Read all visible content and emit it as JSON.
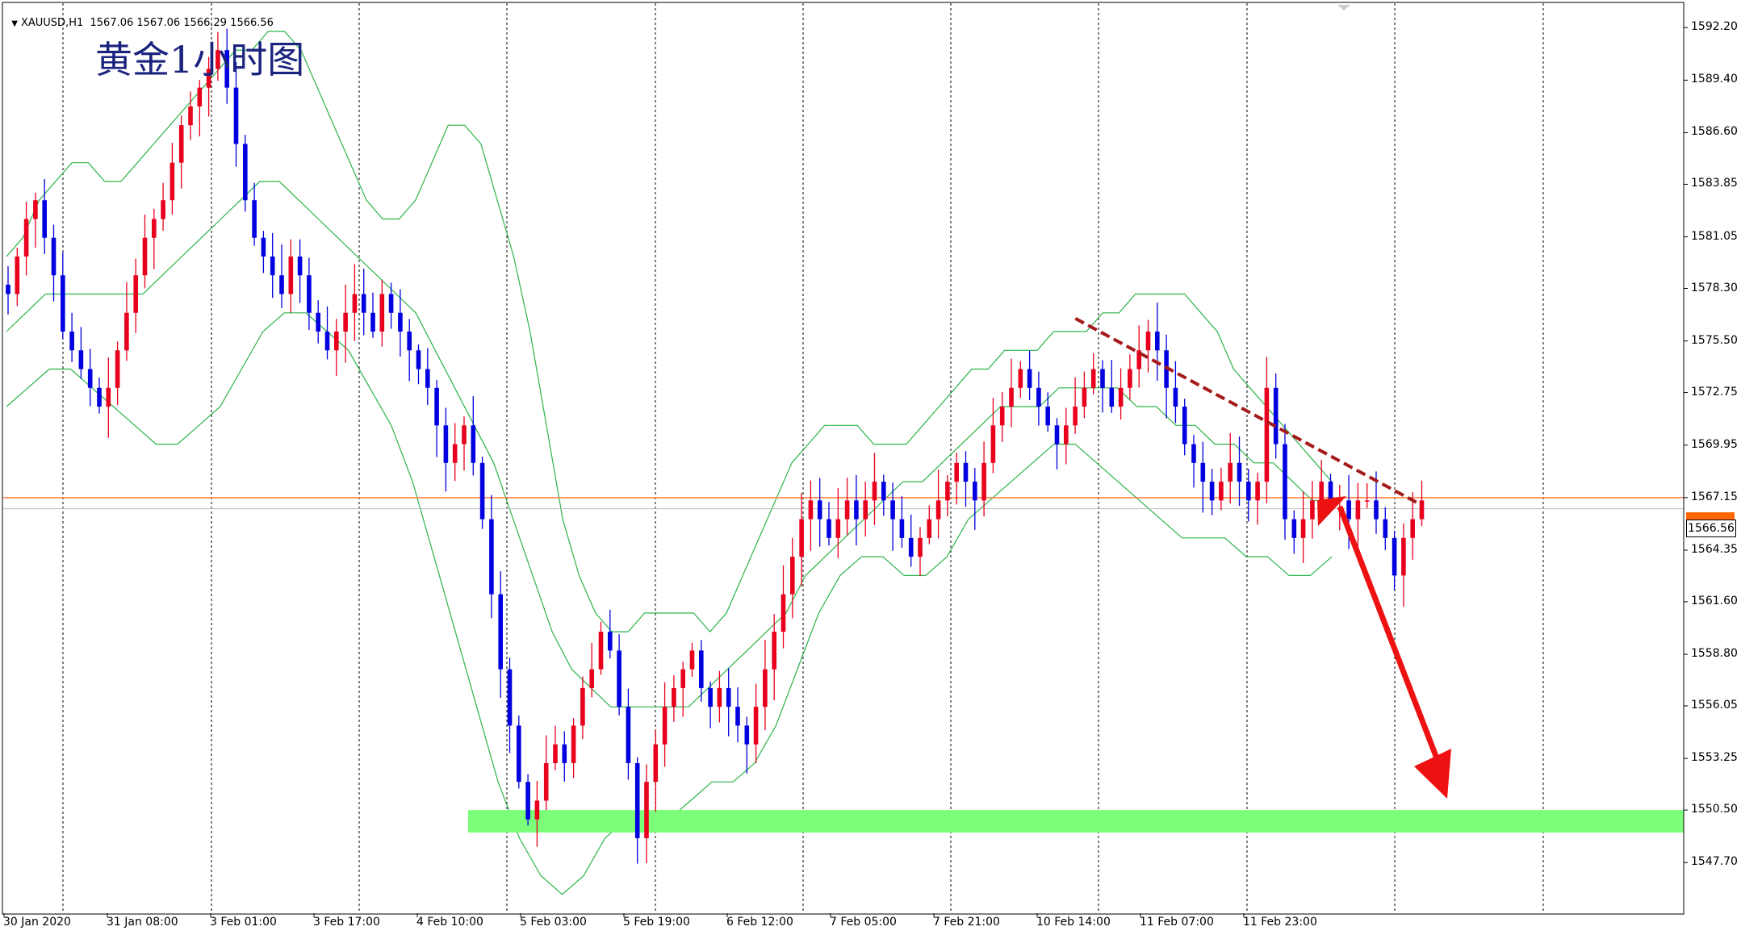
{
  "header": {
    "symbol_line": "XAUUSD,H1  1567.06 1567.06 1566.29 1566.56",
    "title": "黄金1小时图"
  },
  "colors": {
    "bull": "#e8001c",
    "bear": "#0000e0",
    "bands": "#2cb34a",
    "grid": "#000000",
    "hline": "#ff7f3f",
    "support_zone": "#7bff7b",
    "arrow": "#ee1111",
    "trendline": "#a51a1a"
  },
  "chart_data": {
    "type": "candlestick",
    "symbol": "XAUUSD",
    "timeframe": "H1",
    "title": "黄金1小时图",
    "last_price": 1566.56,
    "ohlc_header": {
      "open": 1567.06,
      "high": 1567.06,
      "low": 1566.29,
      "close": 1566.56
    },
    "y_ticks": [
      "1592.20",
      "1589.40",
      "1586.60",
      "1583.85",
      "1581.05",
      "1578.30",
      "1575.50",
      "1572.75",
      "1569.95",
      "1567.15",
      "1564.35",
      "1561.60",
      "1558.80",
      "1556.05",
      "1553.25",
      "1550.50",
      "1547.70"
    ],
    "x_ticks": [
      "30 Jan 2020",
      "31 Jan 08:00",
      "3 Feb 01:00",
      "3 Feb 17:00",
      "4 Feb 10:00",
      "5 Feb 03:00",
      "5 Feb 19:00",
      "6 Feb 12:00",
      "7 Feb 05:00",
      "7 Feb 21:00",
      "10 Feb 14:00",
      "11 Feb 07:00",
      "11 Feb 23:00"
    ],
    "ylim": [
      1545.0,
      1593.5
    ],
    "horizontal_line": 1567.15,
    "support_zone": [
      1549.3,
      1550.5
    ],
    "trendline": [
      [
        1576.7,
        0.638
      ],
      [
        1566.8,
        0.843
      ]
    ],
    "closes": [
      1578,
      1580,
      1582,
      1583,
      1581,
      1579,
      1576,
      1575,
      1574,
      1573,
      1572,
      1573,
      1575,
      1577,
      1579,
      1581,
      1582,
      1583,
      1585,
      1587,
      1588,
      1589,
      1590,
      1591,
      1589,
      1586,
      1583,
      1581,
      1580,
      1579,
      1578,
      1580,
      1579,
      1577,
      1576,
      1575,
      1576,
      1577,
      1578,
      1577,
      1576,
      1578,
      1577,
      1576,
      1575,
      1574,
      1573,
      1571,
      1569,
      1570,
      1571,
      1569,
      1566,
      1562,
      1558,
      1555,
      1552,
      1550,
      1551,
      1553,
      1554,
      1553,
      1555,
      1557,
      1558,
      1560,
      1559,
      1556,
      1553,
      1549,
      1552,
      1554,
      1556,
      1557,
      1558,
      1559,
      1557,
      1556,
      1557,
      1556,
      1555,
      1554,
      1556,
      1558,
      1560,
      1562,
      1564,
      1566,
      1567,
      1566,
      1565,
      1566,
      1567,
      1566,
      1567,
      1568,
      1567,
      1566,
      1565,
      1564,
      1565,
      1566,
      1567,
      1568,
      1569,
      1568,
      1567,
      1569,
      1571,
      1572,
      1573,
      1574,
      1573,
      1572,
      1571,
      1570,
      1571,
      1572,
      1573,
      1574,
      1573,
      1572,
      1573,
      1574,
      1575,
      1576,
      1575,
      1573,
      1572,
      1570,
      1569,
      1568,
      1567,
      1568,
      1569,
      1568,
      1567,
      1568,
      1573,
      1570,
      1566,
      1565,
      1566,
      1567,
      1568,
      1567,
      1567,
      1566,
      1567,
      1567,
      1566,
      1565,
      1563,
      1565,
      1566,
      1567
    ],
    "upper_band": [
      1580,
      1581,
      1583,
      1584,
      1585,
      1585,
      1584,
      1584,
      1585,
      1586,
      1587,
      1588,
      1589,
      1590,
      1591,
      1591,
      1592,
      1592,
      1591,
      1589,
      1587,
      1585,
      1583,
      1582,
      1582,
      1583,
      1585,
      1587,
      1587,
      1586,
      1583,
      1580,
      1576,
      1571,
      1566,
      1563,
      1561,
      1560,
      1560,
      1561,
      1561,
      1561,
      1561,
      1560,
      1561,
      1563,
      1565,
      1567,
      1569,
      1570,
      1571,
      1571,
      1571,
      1570,
      1570,
      1570,
      1571,
      1572,
      1573,
      1574,
      1574,
      1575,
      1575,
      1575,
      1576,
      1576,
      1576,
      1577,
      1577,
      1578,
      1578,
      1578,
      1578,
      1577,
      1576,
      1574,
      1573,
      1572,
      1571,
      1570,
      1569,
      1568
    ],
    "mid_band": [
      1576,
      1577,
      1578,
      1578,
      1578,
      1578,
      1578,
      1578,
      1579,
      1580,
      1581,
      1582,
      1583,
      1584,
      1584,
      1583,
      1582,
      1581,
      1580,
      1579,
      1578,
      1577,
      1575,
      1573,
      1571,
      1569,
      1566,
      1563,
      1560,
      1558,
      1557,
      1556,
      1556,
      1556,
      1556,
      1556,
      1557,
      1558,
      1559,
      1560,
      1561,
      1563,
      1564,
      1565,
      1566,
      1567,
      1568,
      1568,
      1569,
      1570,
      1571,
      1572,
      1572,
      1572,
      1573,
      1573,
      1573,
      1573,
      1572,
      1572,
      1571,
      1571,
      1570,
      1570,
      1569,
      1569,
      1568,
      1567,
      1567
    ],
    "lower_band": [
      1572,
      1573,
      1574,
      1574,
      1573,
      1572,
      1571,
      1570,
      1570,
      1571,
      1572,
      1574,
      1576,
      1577,
      1577,
      1576,
      1575,
      1573,
      1571,
      1568,
      1564,
      1560,
      1556,
      1552,
      1549,
      1547,
      1546,
      1547,
      1549,
      1550,
      1550,
      1550,
      1551,
      1552,
      1552,
      1553,
      1555,
      1558,
      1561,
      1563,
      1564,
      1564,
      1563,
      1563,
      1564,
      1566,
      1567,
      1568,
      1569,
      1570,
      1570,
      1569,
      1568,
      1567,
      1566,
      1565,
      1565,
      1565,
      1564,
      1564,
      1563,
      1563,
      1564
    ]
  }
}
